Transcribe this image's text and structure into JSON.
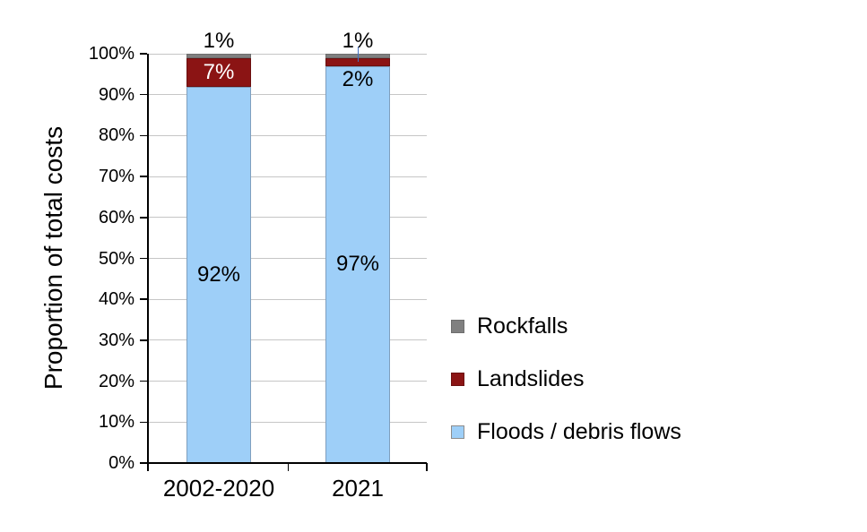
{
  "chart_data": {
    "type": "bar",
    "stacked": true,
    "title": "",
    "ylabel": "Proportion of total costs",
    "xlabel": "",
    "ylim": [
      0,
      100
    ],
    "grid": true,
    "legend_position": "right",
    "ytick_labels": [
      "0%",
      "10%",
      "20%",
      "30%",
      "40%",
      "50%",
      "60%",
      "70%",
      "80%",
      "90%",
      "100%"
    ],
    "categories": [
      "2002-2020",
      "2021"
    ],
    "series": [
      {
        "key": "floods",
        "name": "Floods / debris flows",
        "color": "#9ECFF8",
        "border_color": "#7F9FBE",
        "values": [
          92,
          97
        ],
        "labels": [
          "92%",
          "97%"
        ]
      },
      {
        "key": "landslides",
        "name": "Landslides",
        "color": "#8B1414",
        "border_color": "#6B1010",
        "values": [
          7,
          2
        ],
        "labels": [
          "7%",
          "2%"
        ]
      },
      {
        "key": "rockfalls",
        "name": "Rockfalls",
        "color": "#808080",
        "border_color": "#6E6E6E",
        "values": [
          1,
          1
        ],
        "labels": [
          "1%",
          "1%"
        ]
      }
    ],
    "legend": {
      "items": [
        {
          "label": "Rockfalls",
          "color": "#808080",
          "border_color": "#6E6E6E"
        },
        {
          "label": "Landslides",
          "color": "#8B1414",
          "border_color": "#6B1010"
        },
        {
          "label": "Floods / debris flows",
          "color": "#9ECFF8",
          "border_color": "#8C8C8C"
        }
      ]
    },
    "colors": {
      "gridline": "#C6C6C6",
      "axis": "#000000",
      "leader_line": "#4472C4",
      "label_on_dark": "#FFFFFF",
      "text": "#000000"
    }
  }
}
